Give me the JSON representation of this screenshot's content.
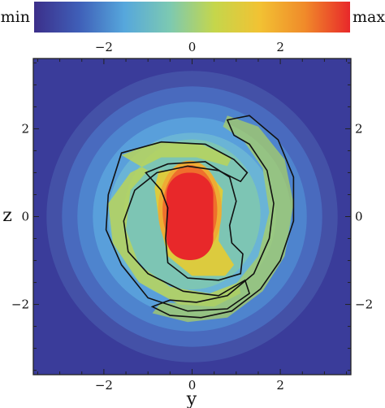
{
  "chart_data": {
    "type": "heatmap",
    "title": "",
    "xlabel": "y",
    "ylabel": "z",
    "xlim": [
      -3.6,
      3.6
    ],
    "ylim": [
      -3.6,
      3.6
    ],
    "x_ticks": [
      -2,
      0,
      2
    ],
    "y_ticks": [
      -2,
      0,
      2
    ],
    "colorbar": {
      "min_label": "min",
      "max_label": "max",
      "colors": [
        "#3c2f8a",
        "#3f5fb8",
        "#56a7dc",
        "#7cc9b2",
        "#c5d64b",
        "#f2c233",
        "#f08a2a",
        "#e8282a"
      ]
    },
    "contour_color": "#111111",
    "background_value_color": "#3a3c9a",
    "structures": [
      {
        "name": "core",
        "description": "elongated high-density bar",
        "center": [
          0,
          0.1
        ],
        "semi_axes": [
          0.55,
          1.0
        ]
      },
      {
        "name": "arm-left",
        "description": "spiral arm wrapping from top-left down to bottom"
      },
      {
        "name": "arm-right",
        "description": "spiral arm wrapping from top-right down to bottom"
      }
    ]
  }
}
